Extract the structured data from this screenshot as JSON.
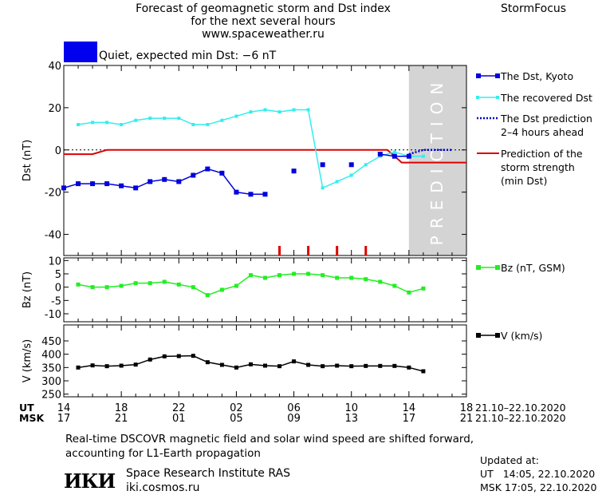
{
  "header": {
    "title_lines": [
      "Forecast of geomagnetic storm and Dst index",
      "for the next several hours",
      "www.spaceweather.ru"
    ],
    "brand": "StormFocus",
    "status_text": "Quiet, expected min Dst: −6 nT",
    "status_color": "#0000ee"
  },
  "colors": {
    "dst_kyoto": "#0000dd",
    "dst_recovered": "#33eeee",
    "dst_prediction": "#0000cc",
    "storm_strength": "#dd0000",
    "bz": "#22ee22",
    "v": "#000000",
    "prediction_zone": "#d4d4d4"
  },
  "chart_data": [
    {
      "type": "line",
      "panel": "dst",
      "ylabel": "Dst (nT)",
      "ylim": [
        -50,
        40
      ],
      "yticks": [
        -40,
        -20,
        0,
        20,
        40
      ],
      "xlim": [
        0,
        28
      ],
      "prediction_zone": {
        "from": 24,
        "to": 28,
        "label": "PREDICTION"
      },
      "series": [
        {
          "name": "The Dst, Kyoto",
          "style": "line-square",
          "segments": [
            [
              [
                0,
                -18
              ],
              [
                1,
                -16
              ],
              [
                2,
                -16
              ],
              [
                3,
                -16
              ],
              [
                4,
                -17
              ],
              [
                5,
                -18
              ],
              [
                6,
                -15
              ],
              [
                7,
                -14
              ],
              [
                8,
                -15
              ],
              [
                9,
                -12
              ],
              [
                10,
                -9
              ],
              [
                11,
                -11
              ],
              [
                12,
                -20
              ],
              [
                13,
                -21
              ],
              [
                14,
                -21
              ]
            ],
            [
              [
                16,
                -10
              ]
            ],
            [
              [
                18,
                -7
              ]
            ],
            [
              [
                20,
                -7
              ]
            ],
            [
              [
                22,
                -2
              ],
              [
                23,
                -3
              ],
              [
                24,
                -3
              ]
            ]
          ]
        },
        {
          "name": "The recovered Dst",
          "style": "line-small",
          "points": [
            [
              1,
              12
            ],
            [
              2,
              13
            ],
            [
              3,
              13
            ],
            [
              4,
              12
            ],
            [
              5,
              14
            ],
            [
              6,
              15
            ],
            [
              7,
              15
            ],
            [
              8,
              15
            ],
            [
              9,
              12
            ],
            [
              10,
              12
            ],
            [
              11,
              14
            ],
            [
              12,
              16
            ],
            [
              13,
              18
            ],
            [
              14,
              19
            ],
            [
              15,
              18
            ],
            [
              16,
              19
            ],
            [
              17,
              19
            ],
            [
              18,
              -18
            ],
            [
              19,
              -15
            ],
            [
              20,
              -12
            ],
            [
              21,
              -7
            ],
            [
              22,
              -3
            ],
            [
              23,
              -1
            ],
            [
              24,
              -3
            ],
            [
              25,
              -3
            ]
          ]
        },
        {
          "name": "The Dst prediction\n2–4 hours ahead",
          "style": "dotted",
          "points": [
            [
              24,
              -2
            ],
            [
              24.5,
              -1
            ],
            [
              25,
              0
            ],
            [
              26,
              0
            ],
            [
              27,
              0
            ]
          ]
        },
        {
          "name": "Prediction of the\nstorm strength\n(min Dst)",
          "style": "line",
          "points": [
            [
              0,
              -2
            ],
            [
              2,
              -2
            ],
            [
              3,
              0
            ],
            [
              22.5,
              0
            ],
            [
              23.5,
              -6
            ],
            [
              28,
              -6
            ]
          ]
        }
      ],
      "storm_markers_x": [
        15,
        17,
        19,
        21
      ]
    },
    {
      "type": "line",
      "panel": "bz",
      "ylabel": "Bz (nT)",
      "ylim": [
        -13,
        11
      ],
      "yticks": [
        -10,
        -5,
        0,
        5,
        10
      ],
      "xlim": [
        0,
        28
      ],
      "series": [
        {
          "name": "Bz (nT, GSM)",
          "points": [
            [
              1,
              1
            ],
            [
              2,
              0
            ],
            [
              3,
              0
            ],
            [
              4,
              0.5
            ],
            [
              5,
              1.5
            ],
            [
              6,
              1.5
            ],
            [
              7,
              2
            ],
            [
              8,
              1
            ],
            [
              9,
              0
            ],
            [
              10,
              -3
            ],
            [
              11,
              -1
            ],
            [
              12,
              0.5
            ],
            [
              13,
              4.5
            ],
            [
              14,
              3.5
            ],
            [
              15,
              4.5
            ],
            [
              16,
              5
            ],
            [
              17,
              5
            ],
            [
              18,
              4.5
            ],
            [
              19,
              3.5
            ],
            [
              20,
              3.5
            ],
            [
              21,
              3
            ],
            [
              22,
              2
            ],
            [
              23,
              0.5
            ],
            [
              24,
              -2
            ],
            [
              25,
              -0.5
            ]
          ]
        }
      ]
    },
    {
      "type": "line",
      "panel": "v",
      "ylabel": "V (km/s)",
      "ylim": [
        240,
        510
      ],
      "yticks": [
        250,
        300,
        350,
        400,
        450
      ],
      "xlim": [
        0,
        28
      ],
      "series": [
        {
          "name": "V (km/s)",
          "points": [
            [
              1,
              350
            ],
            [
              2,
              358
            ],
            [
              3,
              355
            ],
            [
              4,
              357
            ],
            [
              5,
              361
            ],
            [
              6,
              380
            ],
            [
              7,
              392
            ],
            [
              8,
              393
            ],
            [
              9,
              394
            ],
            [
              10,
              370
            ],
            [
              11,
              360
            ],
            [
              12,
              350
            ],
            [
              13,
              362
            ],
            [
              14,
              357
            ],
            [
              15,
              355
            ],
            [
              16,
              373
            ],
            [
              17,
              360
            ],
            [
              18,
              355
            ],
            [
              19,
              357
            ],
            [
              20,
              355
            ],
            [
              21,
              356
            ],
            [
              22,
              356
            ],
            [
              23,
              356
            ],
            [
              24,
              350
            ],
            [
              25,
              336
            ]
          ]
        }
      ]
    }
  ],
  "time_axis": {
    "ut_label": "UT",
    "msk_label": "MSK",
    "ut_ticks": [
      "14",
      "18",
      "22",
      "02",
      "06",
      "10",
      "14",
      "18"
    ],
    "msk_ticks": [
      "17",
      "21",
      "01",
      "05",
      "09",
      "13",
      "17",
      "21"
    ],
    "ut_range": "21.10–22.10.2020",
    "msk_range": "21.10–22.10.2020"
  },
  "footer": {
    "caption": "Real-time DSCOVR magnetic field and solar wind speed are shifted forward, accounting for L1-Earth propagation",
    "logo_text": "ИКИ",
    "institute": "Space Research Institute RAS",
    "institute_url": "iki.cosmos.ru",
    "updated_label": "Updated at:",
    "updated_ut": "UT   14:05, 22.10.2020",
    "updated_msk": "MSK 17:05, 22.10.2020"
  }
}
